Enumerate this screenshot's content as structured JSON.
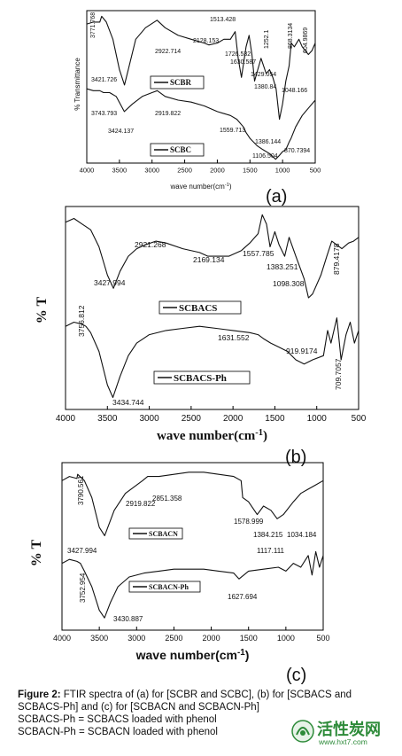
{
  "figure": {
    "caption_label": "Figure 2:",
    "caption_text": "FTIR spectra of (a) for [SCBR and SCBC], (b) for [SCBACS and SCBACS-Ph] and (c) for [SCBACN and SCBACN-Ph]",
    "note1": "SCBACS-Ph = SCBACS loaded with phenol",
    "note2": "SCBACN-Ph = SCBACN loaded with phenol",
    "watermark_main": "活性炭网",
    "watermark_url": "www.hxt7.com",
    "colors": {
      "line": "#111111",
      "axis": "#000000",
      "watermark": "#2e8b3a"
    }
  },
  "chart_data": [
    {
      "panel": "(a)",
      "type": "line",
      "xlabel": "wave number(cm-1)",
      "ylabel": "% Transmittance",
      "xlim": [
        4000,
        500
      ],
      "xticks": [
        4000,
        3500,
        3000,
        2500,
        2000,
        1500,
        1000,
        500
      ],
      "legend_placement": "inside",
      "series": [
        {
          "name": "SCBR",
          "x": [
            4000,
            3900,
            3800,
            3771.768,
            3700,
            3600,
            3500,
            3421.726,
            3350,
            3250,
            3100,
            2922.714,
            2800,
            2600,
            2400,
            2200,
            2128.153,
            2000,
            1900,
            1800,
            1726.532,
            1680,
            1630.587,
            1560,
            1513.428,
            1470,
            1429.054,
            1380.84,
            1330,
            1252.1,
            1200,
            1150,
            1100,
            1048.166,
            1000,
            950,
            900,
            868.3134,
            820,
            750,
            700,
            604.9869,
            550,
            500
          ],
          "y": [
            68,
            69,
            69,
            72,
            69,
            60,
            44,
            36,
            46,
            60,
            66,
            70,
            66,
            62,
            60,
            58,
            57,
            58,
            60,
            60,
            64,
            50,
            40,
            56,
            62,
            52,
            38,
            44,
            50,
            42,
            44,
            40,
            34,
            18,
            26,
            38,
            46,
            58,
            56,
            60,
            56,
            52,
            54,
            58
          ]
        },
        {
          "name": "SCBC",
          "x": [
            4000,
            3900,
            3800,
            3743.793,
            3650,
            3550,
            3424.137,
            3300,
            3150,
            3000,
            2919.822,
            2800,
            2600,
            2400,
            2200,
            2000,
            1800,
            1700,
            1600,
            1559.713,
            1500,
            1386.144,
            1300,
            1200,
            1106.504,
            1050,
            1000,
            950,
            900,
            870.7394,
            800,
            700,
            600,
            500
          ],
          "y": [
            34,
            33,
            33,
            32,
            32,
            30,
            22,
            26,
            30,
            32,
            33,
            30,
            28,
            27,
            25,
            22,
            20,
            18,
            14,
            11,
            8,
            4,
            2,
            0,
            -3,
            -1,
            1,
            2,
            6,
            8,
            14,
            20,
            24,
            28
          ]
        }
      ],
      "annotations": [
        "3771.768",
        "3421.726",
        "2922.714",
        "2128.153",
        "1513.428",
        "1726.532",
        "1630.587",
        "1429.054",
        "1380.84",
        "1252.1",
        "1048.166",
        "868.3134",
        "604.9869",
        "3743.793",
        "3424.137",
        "2919.822",
        "1559.713",
        "1386.144",
        "1106.504",
        "870.7394"
      ]
    },
    {
      "panel": "(b)",
      "type": "line",
      "xlabel": "wave number(cm-1)",
      "ylabel": "% T",
      "xlim": [
        4000,
        500
      ],
      "xticks": [
        4000,
        3500,
        3000,
        2500,
        2000,
        1500,
        1000,
        500
      ],
      "series": [
        {
          "name": "SCBACS",
          "x": [
            4000,
            3900,
            3800,
            3700,
            3600,
            3500,
            3427.994,
            3350,
            3250,
            3150,
            3050,
            2921.268,
            2800,
            2600,
            2400,
            2300,
            2169.134,
            2050,
            1900,
            1800,
            1700,
            1650,
            1600,
            1557.785,
            1500,
            1450,
            1383.251,
            1330,
            1250,
            1150,
            1098.308,
            1050,
            950,
            879.4178,
            820,
            760,
            700,
            620,
            560,
            500
          ],
          "y": [
            78,
            80,
            77,
            74,
            65,
            50,
            43,
            52,
            60,
            64,
            66,
            68,
            67,
            64,
            62,
            60,
            60,
            60,
            63,
            67,
            72,
            82,
            77,
            65,
            73,
            66,
            60,
            70,
            60,
            48,
            38,
            40,
            50,
            60,
            68,
            66,
            64,
            67,
            68,
            70
          ]
        },
        {
          "name": "SCBACS-Ph",
          "x": [
            4000,
            3900,
            3800,
            3756.812,
            3700,
            3600,
            3500,
            3434.744,
            3350,
            3250,
            3150,
            3000,
            2800,
            2600,
            2400,
            2200,
            2000,
            1800,
            1700,
            1631.552,
            1550,
            1450,
            1350,
            1250,
            1150,
            1050,
            919.9174,
            870,
            830,
            760,
            709.7057,
            650,
            600,
            550,
            500
          ],
          "y": [
            38,
            40,
            39,
            38,
            35,
            26,
            10,
            4,
            14,
            24,
            30,
            34,
            36,
            37,
            38,
            37,
            36,
            35,
            34,
            32,
            30,
            28,
            26,
            22,
            20,
            22,
            24,
            36,
            30,
            42,
            22,
            34,
            40,
            30,
            36
          ]
        }
      ],
      "annotations": [
        "3427.994",
        "2921.268",
        "2169.134",
        "1557.785",
        "1383.251",
        "1098.308",
        "879.4178",
        "3756.812",
        "3434.744",
        "1631.552",
        "919.9174",
        "709.7057"
      ]
    },
    {
      "panel": "(c)",
      "type": "line",
      "xlabel": "wave number(cm-1)",
      "ylabel": "% T",
      "xlim": [
        4000,
        500
      ],
      "xticks": [
        4000,
        3500,
        3000,
        2500,
        2000,
        1500,
        1000,
        500
      ],
      "series": [
        {
          "name": "SCBACN",
          "x": [
            4000,
            3900,
            3800,
            3790.561,
            3700,
            3600,
            3500,
            3427.994,
            3300,
            3150,
            2919.822,
            2851.358,
            2700,
            2500,
            2300,
            2100,
            1900,
            1700,
            1600,
            1578.999,
            1500,
            1384.215,
            1300,
            1200,
            1117.111,
            1034.184,
            900,
            800,
            700,
            600,
            500
          ],
          "y": [
            70,
            72,
            71,
            73,
            70,
            62,
            48,
            44,
            56,
            64,
            70,
            72,
            72,
            73,
            74,
            74,
            73,
            72,
            70,
            62,
            60,
            54,
            58,
            56,
            52,
            54,
            60,
            64,
            66,
            68,
            70
          ]
        },
        {
          "name": "SCBACN-Ph",
          "x": [
            4000,
            3900,
            3800,
            3752.954,
            3700,
            3600,
            3500,
            3430.887,
            3350,
            3250,
            3100,
            2900,
            2700,
            2500,
            2300,
            2100,
            1900,
            1700,
            1627.694,
            1500,
            1300,
            1100,
            1000,
            900,
            800,
            700,
            650,
            600,
            550,
            500
          ],
          "y": [
            40,
            42,
            41,
            40,
            36,
            28,
            16,
            12,
            20,
            28,
            33,
            35,
            36,
            37,
            37,
            37,
            36,
            35,
            32,
            36,
            37,
            38,
            36,
            40,
            38,
            44,
            34,
            46,
            38,
            44
          ]
        }
      ],
      "annotations": [
        "3790.561",
        "3427.994",
        "2919.822",
        "2851.358",
        "1578.999",
        "1384.215",
        "1117.111",
        "1034.184",
        "3752.954",
        "3430.887",
        "1627.694"
      ]
    }
  ]
}
